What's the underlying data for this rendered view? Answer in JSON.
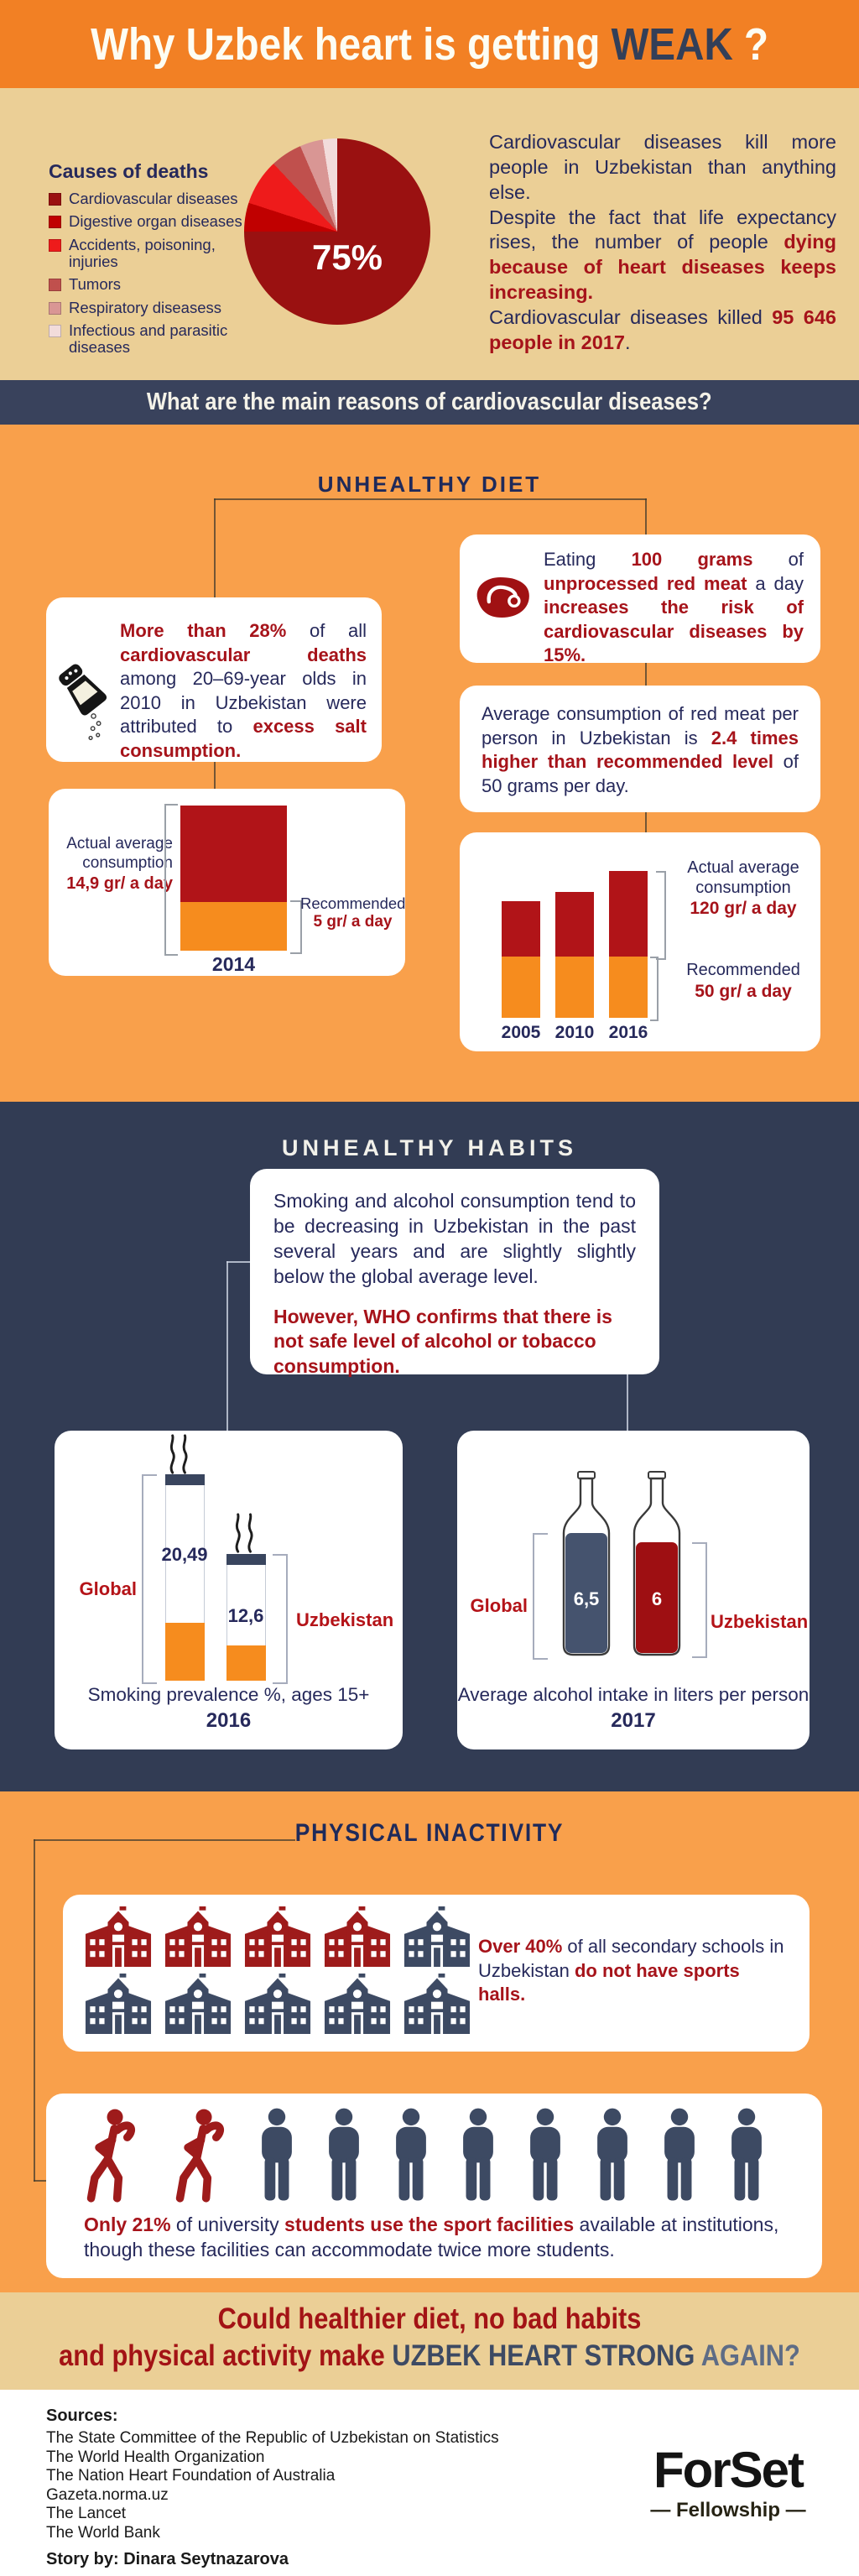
{
  "header": {
    "t1": "Why Uzbek heart is getting",
    "t2": "WEAK",
    "t3": "?"
  },
  "intro": {
    "legend_title": "Causes of deaths",
    "legend": [
      {
        "label": "Cardiovascular diseases",
        "color": "#9A1111"
      },
      {
        "label": "Digestive organ diseases",
        "color": "#C00000"
      },
      {
        "label": "Accidents, poisoning, injuries",
        "color": "#EE1B1B"
      },
      {
        "label": "Tumors",
        "color": "#C0504D"
      },
      {
        "label": "Respiratory diseasess",
        "color": "#D99694"
      },
      {
        "label": "Infectious and parasitic diseases",
        "color": "#F2DCDB"
      }
    ],
    "pie_label": "75%",
    "para": {
      "p1": "Cardiovascular diseases kill more people in Uzbekistan than anything else.",
      "p2a": "Despite the fact that life expectancy rises, the number of people ",
      "p2b": "dying because of heart diseases keeps increasing.",
      "p3a": "Cardiovascular diseases killed ",
      "p3b": "95 646 people in 2017",
      "p3c": "."
    }
  },
  "reasons_banner": "What are the main reasons of cardiovascular diseases?",
  "diet": {
    "heading": "UNHEALTHY DIET",
    "salt": {
      "s1": "More than 28%",
      "s2": " of all ",
      "s3": "cardiovascular deaths",
      "s4": " among 20–69-year olds in 2010 in Uzbekistan were attributed to ",
      "s5": "excess salt consumption."
    },
    "meat": {
      "m1": "Eating ",
      "m2": "100 grams",
      "m3": " of ",
      "m4": "unprocessed red meat",
      "m5": " a day ",
      "m6": "increases the risk of cardiovascular diseases by 15%."
    },
    "avg": {
      "a1": "Average consumption of red meat per person in Uzbekistan is ",
      "a2": "2.4 times higher than recommended level",
      "a3": " of 50 grams per day."
    },
    "salt_chart": {
      "actual_label": "Actual average consumption",
      "actual_value": "14,9 gr/ a day",
      "rec_label": "Recommended",
      "rec_value": "5 gr/ a day",
      "year": "2014"
    },
    "meat_chart": {
      "years": [
        "2005",
        "2010",
        "2016"
      ],
      "actual_label": "Actual average consumption",
      "actual_value": "120 gr/ a day",
      "rec_label": "Recommended",
      "rec_value": "50 gr/ a day"
    }
  },
  "habits": {
    "heading": "UNHEALTHY HABITS",
    "p1": "Smoking and alcohol consumption tend to be decreasing in Uzbekistan in the past several years and are slightly slightly below the global average level.",
    "p2": "However, WHO confirms that there is not safe level of alcohol or tobacco consumption.",
    "smoking": {
      "global_label": "Global",
      "uzb_label": "Uzbekistan",
      "global_value": "20,49",
      "uzb_value": "12,6",
      "caption": "Smoking prevalence %, ages 15+",
      "year": "2016"
    },
    "alcohol": {
      "global_label": "Global",
      "uzb_label": "Uzbekistan",
      "global_value": "6,5",
      "uzb_value": "6",
      "caption": "Average alcohol intake in liters per person",
      "year": "2017"
    }
  },
  "physical": {
    "heading": "PHYSICAL INACTIVITY",
    "schools": {
      "sc1": "Over 40%",
      "sc2": " of all secondary schools in Uzbekistan ",
      "sc3": "do not have sports halls."
    },
    "students": {
      "st1": "Only 21%",
      "st2": " of university ",
      "st3": "students use the sport facilities",
      "st4": " available at institutions, though these facilities can accommodate twice more students."
    }
  },
  "question": {
    "l1": "Could healthier diet, no bad habits",
    "l2a": "and physical activity make ",
    "l2b": "UZBEK HEART STRONG ",
    "l2c": "AGAIN?"
  },
  "footer": {
    "sources_title": "Sources:",
    "sources": [
      "The State Committee of the Republic of Uzbekistan on Statistics",
      "The World Health Organization",
      "The Nation Heart Foundation of Australia",
      "Gazeta.norma.uz",
      "The Lancet",
      "The World Bank"
    ],
    "story": "Story by: Dinara Seytnazarova",
    "logo_name": "ForSet",
    "logo_sub": "— Fellowship —"
  },
  "chart_data": [
    {
      "id": "causes_pie",
      "type": "pie",
      "title": "Causes of deaths",
      "labels": [
        "Cardiovascular diseases",
        "Digestive organ diseases",
        "Accidents, poisoning, injuries",
        "Tumors",
        "Respiratory diseasess",
        "Infectious and parasitic diseases"
      ],
      "values": [
        75,
        5,
        8,
        5.5,
        4,
        2.5
      ],
      "colors": [
        "#9A1111",
        "#C00000",
        "#EE1B1B",
        "#C0504D",
        "#D99694",
        "#F2DCDB"
      ],
      "labeled_slice": "75%",
      "note": "only the 75% slice is labeled; other slice values estimated from arc angles"
    },
    {
      "id": "salt_2014",
      "type": "bar",
      "stacked": true,
      "categories": [
        "2014"
      ],
      "series": [
        {
          "name": "Recommended 5 gr/ a day",
          "values": [
            5
          ],
          "color": "#F68C1E"
        },
        {
          "name": "Excess over recommended",
          "values": [
            9.9
          ],
          "color": "#B11418"
        }
      ],
      "actual_total": 14.9,
      "unit": "grams of salt per day"
    },
    {
      "id": "red_meat",
      "type": "bar",
      "stacked": true,
      "categories": [
        "2005",
        "2010",
        "2016"
      ],
      "series": [
        {
          "name": "Recommended 50 gr/ a day",
          "values": [
            50,
            50,
            50
          ],
          "color": "#F68C1E"
        },
        {
          "name": "Excess over recommended",
          "values": [
            45,
            53,
            70
          ],
          "color": "#B11418"
        }
      ],
      "actual_totals": [
        95,
        103,
        120
      ],
      "unit": "grams of red meat per day",
      "note": "2016 actual labeled 120 gr/ a day; 2005 and 2010 totals estimated from bar heights"
    },
    {
      "id": "smoking",
      "type": "bar",
      "categories": [
        "Global",
        "Uzbekistan"
      ],
      "values": [
        20.49,
        12.6
      ],
      "title": "Smoking prevalence %, ages 15+",
      "year": "2016"
    },
    {
      "id": "alcohol",
      "type": "bar",
      "categories": [
        "Global",
        "Uzbekistan"
      ],
      "values": [
        6.5,
        6
      ],
      "title": "Average alcohol intake in liters per person",
      "year": "2017"
    },
    {
      "id": "schools",
      "type": "pictogram",
      "total": 10,
      "highlighted": 4,
      "value_text": "Over 40%",
      "title": "Secondary schools without sports halls"
    },
    {
      "id": "students",
      "type": "pictogram",
      "total": 10,
      "highlighted": 2,
      "value_text": "Only 21%",
      "title": "University students using sport facilities"
    }
  ]
}
